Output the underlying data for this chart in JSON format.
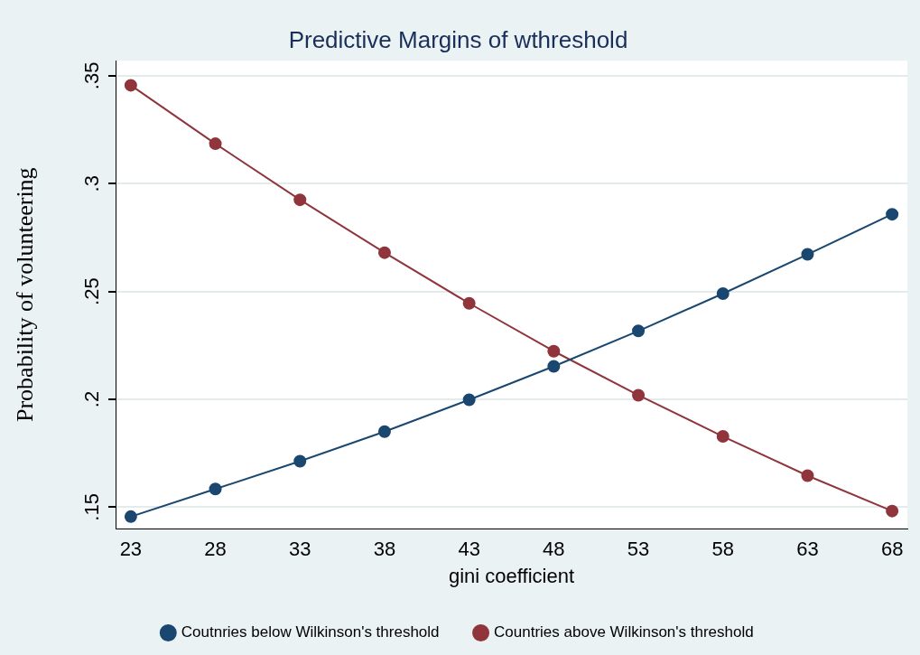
{
  "chart_data": {
    "type": "line",
    "title": "Predictive Margins of wthreshold",
    "xlabel": "gini coefficient",
    "ylabel": "Probability of volunteering",
    "x": [
      23,
      28,
      33,
      38,
      43,
      48,
      53,
      58,
      63,
      68
    ],
    "series": [
      {
        "name": "Coutnries below Wilkinson's threshold",
        "color": "#1a476f",
        "values": [
          0.1456,
          0.1584,
          0.1713,
          0.185,
          0.1998,
          0.2153,
          0.2317,
          0.249,
          0.2672,
          0.2858
        ]
      },
      {
        "name": "Countries above Wilkinson's threshold",
        "color": "#90353b",
        "values": [
          0.3456,
          0.3185,
          0.2925,
          0.268,
          0.2445,
          0.2223,
          0.2019,
          0.1828,
          0.1646,
          0.1482
        ]
      }
    ],
    "xlim": [
      22.1,
      68.9
    ],
    "xticks": [
      23,
      28,
      33,
      38,
      43,
      48,
      53,
      58,
      63,
      68
    ],
    "ylim": [
      0.14,
      0.357
    ],
    "yticks": [
      {
        "value": 0.15,
        "label": ".15"
      },
      {
        "value": 0.2,
        "label": ".2"
      },
      {
        "value": 0.25,
        "label": ".25"
      },
      {
        "value": 0.3,
        "label": ".3"
      },
      {
        "value": 0.35,
        "label": ".35"
      }
    ],
    "grid": "y",
    "legend": "bottom",
    "marker": "circle",
    "line_style": "solid"
  }
}
